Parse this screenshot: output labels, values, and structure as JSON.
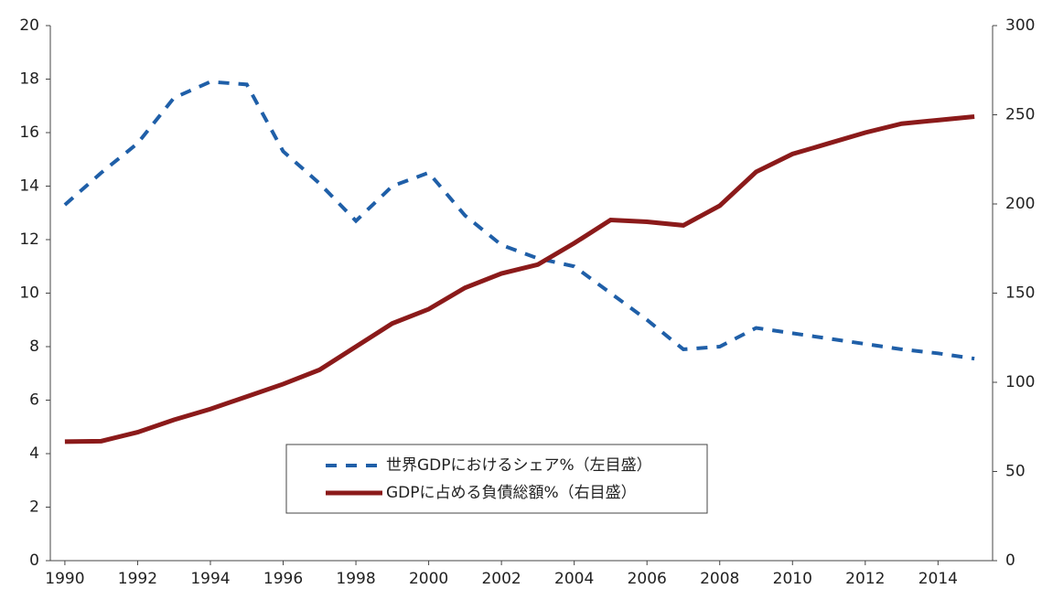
{
  "chart_data": {
    "type": "line",
    "x": [
      1990,
      1991,
      1992,
      1993,
      1994,
      1995,
      1996,
      1997,
      1998,
      1999,
      2000,
      2001,
      2002,
      2003,
      2004,
      2005,
      2006,
      2007,
      2008,
      2009,
      2010,
      2011,
      2012,
      2013,
      2014,
      2015
    ],
    "series": [
      {
        "name": "世界GDPにおけるシェア%（左目盛）",
        "color": "#1f5fa8",
        "dashed": true,
        "values": [
          13.3,
          14.5,
          15.6,
          17.3,
          17.9,
          17.8,
          15.3,
          14.1,
          12.7,
          14.0,
          14.5,
          12.9,
          11.8,
          11.3,
          11.0,
          10.0,
          9.0,
          7.9,
          8.0,
          8.7,
          8.5,
          8.3,
          8.1,
          7.9,
          7.75,
          7.55
        ]
      },
      {
        "name": "GDPに占める負債総額%（右目盛）",
        "color": "#8b1a1a",
        "axis": "y2",
        "values": [
          66.7,
          67,
          72,
          79,
          85,
          92,
          99,
          107,
          120,
          133,
          141,
          153,
          161,
          166,
          178,
          191,
          190,
          188,
          199,
          218,
          228,
          234,
          240,
          245,
          247,
          249
        ]
      }
    ],
    "xlim": [
      1989.6,
      2015.5
    ],
    "xticks": [
      1990,
      1992,
      1994,
      1996,
      1998,
      2000,
      2002,
      2004,
      2006,
      2008,
      2010,
      2012,
      2014
    ],
    "ylim": [
      0,
      20
    ],
    "yticks": [
      0,
      2,
      4,
      6,
      8,
      10,
      12,
      14,
      16,
      18,
      20
    ],
    "y2lim": [
      0,
      300
    ],
    "y2ticks": [
      0,
      50,
      100,
      150,
      200,
      250,
      300
    ],
    "grid": false
  }
}
